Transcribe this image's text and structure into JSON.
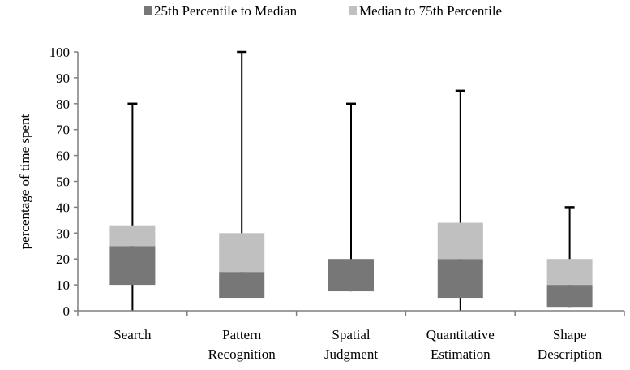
{
  "chart_data": {
    "type": "bar",
    "subtype": "stacked-box-whisker",
    "categories": [
      [
        "Search"
      ],
      [
        "Pattern",
        "Recognition"
      ],
      [
        "Spatial",
        "Judgment"
      ],
      [
        "Quantitative",
        "Estimation"
      ],
      [
        "Shape",
        "Description"
      ]
    ],
    "series": [
      {
        "name": "25th Percentile to Median",
        "color": "#777777",
        "ranges": [
          [
            10,
            25
          ],
          [
            5,
            15
          ],
          [
            7.5,
            20
          ],
          [
            5,
            20
          ],
          [
            1.5,
            10
          ]
        ]
      },
      {
        "name": "Median to 75th Percentile",
        "color": "#c0c0c0",
        "ranges": [
          [
            25,
            33
          ],
          [
            15,
            30
          ],
          [
            20,
            20
          ],
          [
            20,
            34
          ],
          [
            10,
            20
          ]
        ]
      }
    ],
    "whiskers": {
      "min": [
        0,
        5,
        7.5,
        0,
        1.5
      ],
      "max": [
        80,
        100,
        80,
        85,
        40
      ]
    },
    "ylabel": "percentage of time spent",
    "xlabel": "",
    "ylim": [
      0,
      100
    ],
    "yticks": [
      0,
      10,
      20,
      30,
      40,
      50,
      60,
      70,
      80,
      90,
      100
    ],
    "legend_position": "top",
    "grid": false
  }
}
